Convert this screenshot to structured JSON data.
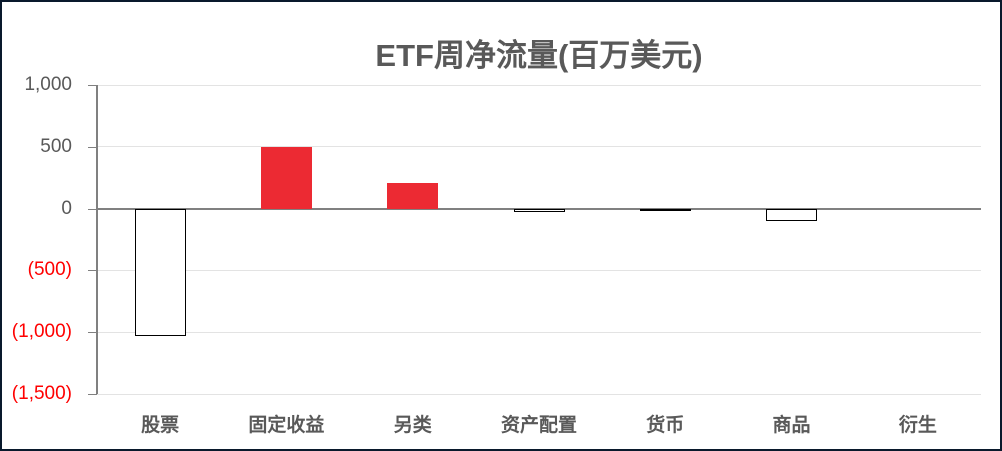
{
  "frame": {
    "title": "ETF周净流量(百万美元)"
  },
  "colors": {
    "title": "#595959",
    "positive_bar": "#EC2A33",
    "negative_bar_fill": "#FFFFFF",
    "negative_bar_border": "#000000",
    "axis_line": "#808080",
    "zero_line": "#808080",
    "gridline": "#E3E3E3",
    "ytick_label": "#595959",
    "ytick_label_negative": "#FF0000",
    "category_label": "#595959",
    "frame_border": "#09192C"
  },
  "chart_data": {
    "type": "bar",
    "title": "ETF周净流量(百万美元)",
    "categories": [
      "股票",
      "固定收益",
      "另类",
      "资产配置",
      "货币",
      "商品",
      "衍生"
    ],
    "values": [
      -1030,
      500,
      210,
      -25,
      -15,
      -100,
      0
    ],
    "xlabel": "",
    "ylabel": "",
    "ylim": [
      -1500,
      1000
    ],
    "yticks": [
      1000,
      500,
      0,
      -500,
      -1000,
      -1500
    ],
    "ytick_labels": [
      "1,000",
      "500",
      "0",
      "(500)",
      "(1,000)",
      "(1,500)"
    ],
    "grid": true,
    "legend": false,
    "negative_value_style": "negative bars drawn as white with black outline; negative axis ticks shown in red with parentheses"
  }
}
